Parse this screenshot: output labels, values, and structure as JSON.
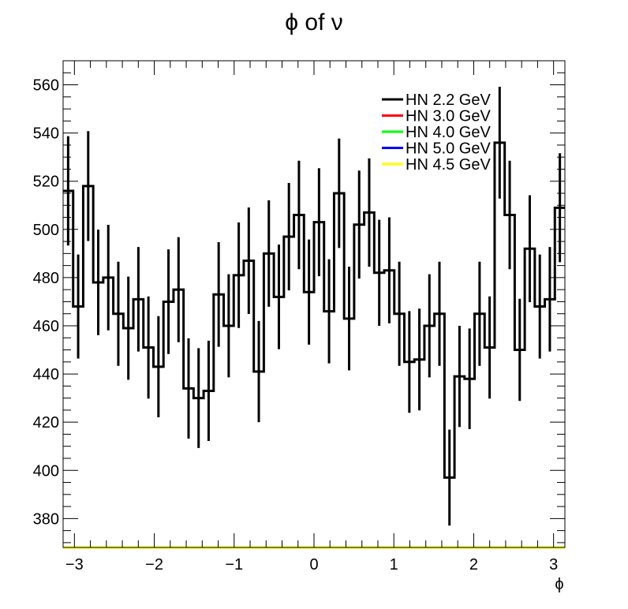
{
  "chart_data": {
    "type": "histogram",
    "title": "ϕ of ν",
    "xlabel": "ϕ",
    "ylabel": "",
    "xlim": [
      -3.14159,
      3.14159
    ],
    "ylim": [
      368,
      570
    ],
    "xticks": [
      -3,
      -2,
      -1,
      0,
      1,
      2,
      3
    ],
    "yticks": [
      380,
      400,
      420,
      440,
      460,
      480,
      500,
      520,
      540,
      560
    ],
    "grid": false,
    "legend_position": "top-right",
    "bins": 50,
    "series": [
      {
        "name": "HN 2.2 GeV",
        "color": "#000000",
        "values": [
          516,
          468,
          518,
          478,
          480,
          465,
          459,
          471,
          451,
          443,
          470,
          475,
          434,
          430,
          433,
          473,
          460,
          481,
          487,
          441,
          490,
          472,
          497,
          506,
          474,
          503,
          466,
          515,
          463,
          502,
          507,
          482,
          483,
          465,
          445,
          446,
          460,
          465,
          397,
          439,
          438,
          465,
          451,
          536,
          506,
          450,
          492,
          468,
          471,
          509
        ],
        "errors": [
          22.7,
          21.6,
          22.8,
          21.9,
          21.9,
          21.6,
          21.4,
          21.7,
          21.2,
          21.0,
          21.7,
          21.8,
          20.8,
          20.7,
          20.8,
          21.7,
          21.4,
          21.9,
          22.1,
          21.0,
          22.1,
          21.7,
          22.3,
          22.5,
          21.8,
          22.4,
          21.6,
          22.7,
          21.5,
          22.4,
          22.5,
          22.0,
          22.0,
          21.6,
          21.1,
          21.1,
          21.4,
          21.6,
          19.9,
          21.0,
          20.9,
          21.6,
          21.2,
          23.2,
          22.5,
          21.2,
          22.2,
          21.6,
          21.7,
          22.6
        ]
      },
      {
        "name": "HN 3.0 GeV",
        "color": "#ff0000",
        "values": []
      },
      {
        "name": "HN 4.0 GeV",
        "color": "#00ff00",
        "values": []
      },
      {
        "name": "HN 5.0 GeV",
        "color": "#0000ff",
        "values": []
      },
      {
        "name": "HN 4.5 GeV",
        "color": "#ffff00",
        "values": []
      }
    ]
  }
}
